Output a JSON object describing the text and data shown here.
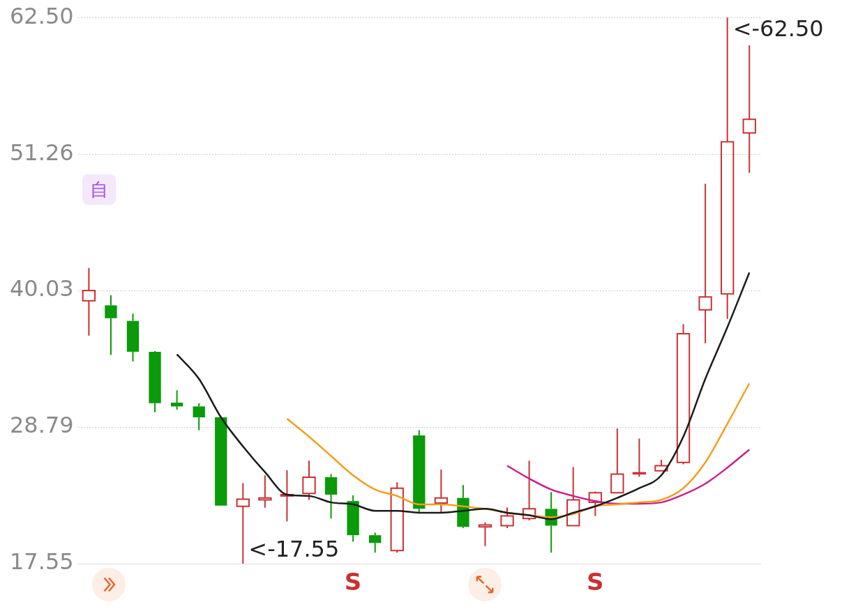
{
  "chart_data": {
    "type": "candlestick",
    "categories": [
      null,
      null,
      null,
      null,
      null,
      null,
      null,
      null,
      null,
      null,
      null,
      null,
      null,
      null,
      null,
      null,
      null,
      null,
      null,
      null,
      null,
      null,
      null,
      null,
      null,
      null,
      null,
      null,
      null,
      null,
      null
    ],
    "ohlc": [
      [
        39.18,
        41.88,
        36.32,
        40.03
      ],
      [
        38.81,
        39.65,
        34.73,
        37.75
      ],
      [
        37.53,
        38.12,
        34.2,
        34.99
      ],
      [
        34.99,
        35.04,
        30.01,
        30.75
      ],
      [
        30.8,
        31.81,
        30.22,
        30.49
      ],
      [
        30.49,
        30.75,
        28.53,
        29.59
      ],
      [
        29.59,
        29.59,
        22.33,
        22.33
      ],
      [
        22.27,
        24.18,
        17.55,
        22.85
      ],
      [
        22.8,
        24.82,
        22.15,
        22.96
      ],
      [
        23.12,
        25.24,
        21.04,
        23.23
      ],
      [
        23.33,
        26.03,
        22.8,
        24.66
      ],
      [
        24.66,
        24.92,
        21.27,
        23.23
      ],
      [
        22.7,
        23.17,
        19.36,
        19.89
      ],
      [
        19.89,
        20.1,
        18.46,
        19.25
      ],
      [
        18.62,
        24.24,
        18.46,
        23.76
      ],
      [
        28.1,
        28.53,
        21.8,
        22.06
      ],
      [
        22.54,
        25.29,
        21.8,
        22.96
      ],
      [
        22.96,
        24.02,
        20.47,
        20.58
      ],
      [
        20.58,
        20.95,
        19.0,
        20.74
      ],
      [
        20.68,
        22.17,
        20.47,
        21.48
      ],
      [
        21.27,
        26.03,
        21.11,
        22.06
      ],
      [
        22.06,
        23.44,
        18.46,
        20.68
      ],
      [
        20.68,
        25.5,
        20.68,
        22.8
      ],
      [
        22.59,
        23.49,
        21.48,
        23.39
      ],
      [
        23.39,
        28.68,
        23.39,
        24.92
      ],
      [
        24.98,
        27.84,
        24.71,
        25.03
      ],
      [
        25.19,
        26.09,
        25.19,
        25.61
      ],
      [
        25.88,
        37.27,
        25.72,
        36.48
      ],
      [
        38.44,
        48.82,
        35.68,
        39.5
      ],
      [
        39.76,
        62.5,
        37.69,
        52.27
      ],
      [
        53.01,
        60.22,
        49.72,
        54.12
      ]
    ],
    "colors": [
      "#c83232",
      "#0a9a0a",
      "#0a9a0a",
      "#0a9a0a",
      "#0a9a0a",
      "#0a9a0a",
      "#0a9a0a",
      "#c83232",
      "#c83232",
      "#c83232",
      "#c83232",
      "#0a9a0a",
      "#0a9a0a",
      "#0a9a0a",
      "#c83232",
      "#0a9a0a",
      "#c83232",
      "#0a9a0a",
      "#c83232",
      "#c83232",
      "#c83232",
      "#0a9a0a",
      "#c83232",
      "#c83232",
      "#c83232",
      "#c83232",
      "#c83232",
      "#c83232",
      "#c83232",
      "#c83232",
      "#c83232"
    ],
    "series": [
      {
        "type": "line",
        "color": "#1a1a1a",
        "values": [
          null,
          null,
          null,
          null,
          34.78,
          32.76,
          29.59,
          27.2,
          25.08,
          23.23,
          23.12,
          22.59,
          22.43,
          21.9,
          21.9,
          21.74,
          21.74,
          21.9,
          22.06,
          21.74,
          21.53,
          21.21,
          21.74,
          22.27,
          22.96,
          23.76,
          24.82,
          28.0,
          32.76,
          37.0,
          41.51
        ]
      },
      {
        "type": "line",
        "color": "#f0a020",
        "values": [
          null,
          null,
          null,
          null,
          null,
          null,
          null,
          null,
          null,
          29.48,
          28.0,
          26.41,
          24.82,
          23.65,
          23.12,
          22.43,
          22.43,
          22.27,
          22.06,
          21.74,
          21.53,
          21.37,
          21.64,
          22.27,
          22.43,
          22.59,
          22.8,
          23.76,
          25.88,
          29.06,
          32.39
        ]
      },
      {
        "type": "line",
        "color": "#c8208c",
        "values": [
          null,
          null,
          null,
          null,
          null,
          null,
          null,
          null,
          null,
          null,
          null,
          null,
          null,
          null,
          null,
          null,
          null,
          null,
          null,
          25.61,
          24.55,
          23.65,
          23.12,
          22.7,
          22.48,
          22.48,
          22.59,
          23.23,
          24.13,
          25.45,
          26.94
        ]
      }
    ],
    "ylim": [
      17.55,
      62.5
    ],
    "yticks": [
      {
        "value": 17.55,
        "label": "17.55"
      },
      {
        "value": 28.79,
        "label": "28.79"
      },
      {
        "value": 40.03,
        "label": "40.03"
      },
      {
        "value": 51.26,
        "label": "51.26"
      },
      {
        "value": 62.5,
        "label": "62.50"
      }
    ],
    "grid": "y",
    "legend": false,
    "tick_labels": "y",
    "annotations": [
      "<-62.50",
      "<-17.55",
      "自",
      "S",
      "S"
    ]
  }
}
